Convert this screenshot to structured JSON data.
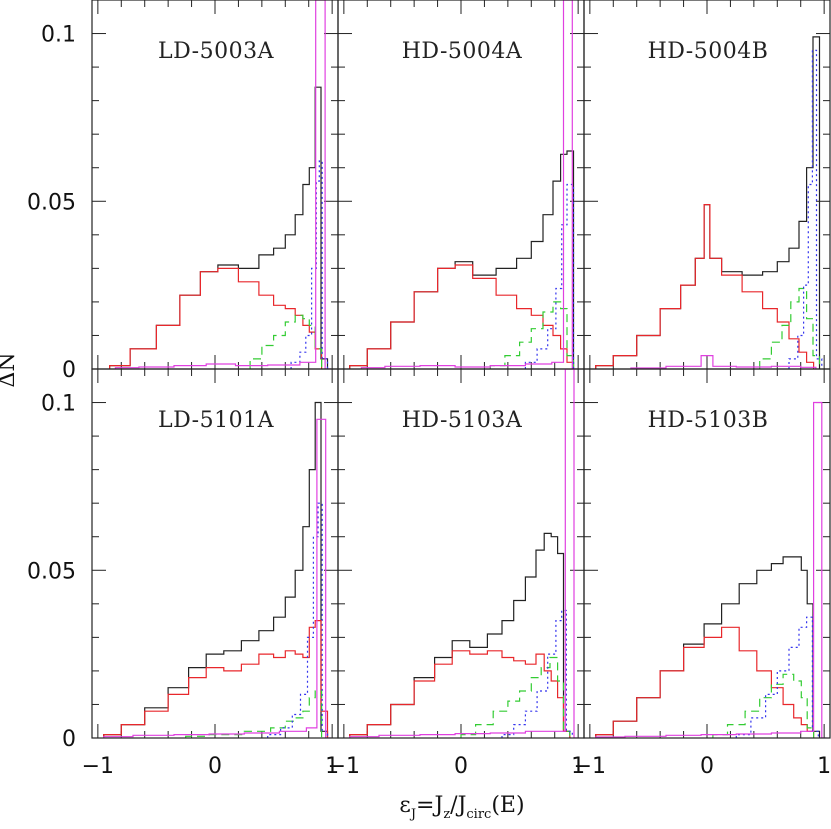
{
  "figure": {
    "ylabel": "ΔN",
    "xlabel": "ε_J=J_z/J_circ(E)",
    "xlabel_parts": {
      "eps": "ε",
      "eps_sub": "J",
      "eq": "=J",
      "jz_sub": "z",
      "slash": "/J",
      "circ_sub": "circ",
      "tail": "(E)"
    }
  },
  "axes": {
    "xlim": [
      -1.05,
      1.05
    ],
    "ylim": [
      0,
      0.11
    ],
    "x_ticks": [
      -1,
      0,
      1
    ],
    "x_tick_labels": [
      "−1",
      "0",
      "1"
    ],
    "y_ticks": [
      0,
      0.05,
      0.1
    ],
    "y_tick_labels": [
      "0",
      "0.05",
      "0.1"
    ]
  },
  "colors": {
    "total": "#222222",
    "red": "#e8272b",
    "green": "#33cc33",
    "blue": "#3333ee",
    "magenta": "#e040e0"
  },
  "chart_data": [
    {
      "type": "line",
      "title": "LD-5003A",
      "series": [
        {
          "style": "solid",
          "color": "#222222",
          "x": [
            -0.85,
            -0.6,
            -0.4,
            -0.2,
            -0.05,
            0.1,
            0.3,
            0.45,
            0.55,
            0.65,
            0.72,
            0.78,
            0.83,
            0.88,
            0.93
          ],
          "y": [
            0.001,
            0.006,
            0.013,
            0.022,
            0.029,
            0.031,
            0.03,
            0.034,
            0.036,
            0.04,
            0.046,
            0.055,
            0.06,
            0.084,
            0.003
          ]
        },
        {
          "style": "solid",
          "color": "#e8272b",
          "x": [
            -0.85,
            -0.6,
            -0.4,
            -0.2,
            -0.05,
            0.1,
            0.3,
            0.45,
            0.55,
            0.65,
            0.72,
            0.78,
            0.83,
            0.88
          ],
          "y": [
            0.001,
            0.006,
            0.013,
            0.022,
            0.029,
            0.03,
            0.026,
            0.022,
            0.019,
            0.018,
            0.016,
            0.013,
            0.011,
            0.006
          ]
        },
        {
          "style": "dashed",
          "color": "#33cc33",
          "x": [
            0.35,
            0.45,
            0.55,
            0.65,
            0.72,
            0.78,
            0.83,
            0.88
          ],
          "y": [
            0.003,
            0.007,
            0.01,
            0.014,
            0.016,
            0.015,
            0.013,
            0.006
          ]
        },
        {
          "style": "dotted",
          "color": "#3333ee",
          "x": [
            0.7,
            0.75,
            0.8,
            0.85,
            0.88,
            0.9,
            0.93
          ],
          "y": [
            0.002,
            0.005,
            0.01,
            0.03,
            0.056,
            0.062,
            0.003
          ]
        },
        {
          "style": "solid",
          "color": "#e040e0",
          "x": [
            -0.8,
            -0.5,
            -0.2,
            0.05,
            0.3,
            0.6,
            0.85,
            0.87,
            0.92,
            0.96
          ],
          "y": [
            0.0004,
            0.0006,
            0.001,
            0.0015,
            0.001,
            0.0012,
            0.002,
            0.11,
            0.11,
            0.0
          ]
        }
      ]
    },
    {
      "type": "line",
      "title": "HD-5004A",
      "series": [
        {
          "style": "solid",
          "color": "#222222",
          "x": [
            -0.9,
            -0.7,
            -0.5,
            -0.3,
            -0.1,
            0.0,
            0.2,
            0.4,
            0.55,
            0.65,
            0.75,
            0.82,
            0.88,
            0.93
          ],
          "y": [
            0.001,
            0.006,
            0.014,
            0.023,
            0.03,
            0.032,
            0.028,
            0.03,
            0.033,
            0.038,
            0.046,
            0.056,
            0.064,
            0.065
          ]
        },
        {
          "style": "solid",
          "color": "#e8272b",
          "x": [
            -0.9,
            -0.7,
            -0.5,
            -0.3,
            -0.1,
            0.0,
            0.2,
            0.4,
            0.55,
            0.65,
            0.75,
            0.82,
            0.88,
            0.93
          ],
          "y": [
            0.001,
            0.006,
            0.014,
            0.023,
            0.03,
            0.031,
            0.027,
            0.022,
            0.018,
            0.016,
            0.013,
            0.01,
            0.006,
            0.002
          ]
        },
        {
          "style": "dashed",
          "color": "#33cc33",
          "x": [
            0.3,
            0.45,
            0.55,
            0.65,
            0.75,
            0.82,
            0.88,
            0.93
          ],
          "y": [
            0.001,
            0.004,
            0.008,
            0.012,
            0.017,
            0.02,
            0.018,
            0.004
          ]
        },
        {
          "style": "dotted",
          "color": "#3333ee",
          "x": [
            0.6,
            0.7,
            0.78,
            0.84,
            0.88,
            0.93
          ],
          "y": [
            0.002,
            0.006,
            0.012,
            0.024,
            0.043,
            0.055
          ]
        },
        {
          "style": "solid",
          "color": "#e040e0",
          "x": [
            -0.8,
            -0.5,
            -0.2,
            0.1,
            0.4,
            0.7,
            0.85,
            0.9,
            0.93,
            0.97
          ],
          "y": [
            0.0004,
            0.0008,
            0.001,
            0.0006,
            0.001,
            0.0015,
            0.002,
            0.11,
            0.11,
            0.0
          ]
        }
      ]
    },
    {
      "type": "line",
      "title": "HD-5004B",
      "series": [
        {
          "style": "solid",
          "color": "#222222",
          "x": [
            -0.9,
            -0.7,
            -0.5,
            -0.3,
            -0.15,
            -0.05,
            0.0,
            0.05,
            0.2,
            0.4,
            0.55,
            0.65,
            0.75,
            0.82,
            0.88,
            0.93
          ],
          "y": [
            0.001,
            0.004,
            0.01,
            0.018,
            0.025,
            0.033,
            0.049,
            0.033,
            0.029,
            0.028,
            0.029,
            0.032,
            0.036,
            0.044,
            0.06,
            0.099
          ]
        },
        {
          "style": "solid",
          "color": "#e8272b",
          "x": [
            -0.9,
            -0.7,
            -0.5,
            -0.3,
            -0.15,
            -0.05,
            0.0,
            0.05,
            0.2,
            0.4,
            0.55,
            0.65,
            0.75,
            0.82,
            0.88
          ],
          "y": [
            0.001,
            0.004,
            0.01,
            0.018,
            0.025,
            0.033,
            0.049,
            0.033,
            0.028,
            0.023,
            0.018,
            0.014,
            0.009,
            0.005,
            0.002
          ]
        },
        {
          "style": "dashed",
          "color": "#33cc33",
          "x": [
            0.5,
            0.6,
            0.68,
            0.75,
            0.82,
            0.88,
            0.93
          ],
          "y": [
            0.003,
            0.008,
            0.013,
            0.02,
            0.024,
            0.015,
            0.004
          ]
        },
        {
          "style": "dotted",
          "color": "#3333ee",
          "x": [
            0.75,
            0.8,
            0.85,
            0.88,
            0.92,
            0.95
          ],
          "y": [
            0.003,
            0.01,
            0.025,
            0.055,
            0.095,
            0.003
          ]
        },
        {
          "style": "solid",
          "color": "#e040e0",
          "x": [
            -0.6,
            -0.1,
            0.0,
            0.1,
            0.4,
            0.7,
            0.9
          ],
          "y": [
            0.0003,
            0.0008,
            0.004,
            0.0008,
            0.0006,
            0.0008,
            0.0005
          ]
        }
      ]
    },
    {
      "type": "line",
      "title": "LD-5101A",
      "series": [
        {
          "style": "solid",
          "color": "#222222",
          "x": [
            -0.9,
            -0.7,
            -0.5,
            -0.3,
            -0.15,
            0.0,
            0.15,
            0.3,
            0.45,
            0.55,
            0.65,
            0.72,
            0.78,
            0.83,
            0.88,
            0.93
          ],
          "y": [
            0.001,
            0.004,
            0.009,
            0.015,
            0.021,
            0.025,
            0.026,
            0.029,
            0.032,
            0.036,
            0.042,
            0.05,
            0.063,
            0.08,
            0.1,
            0.002
          ]
        },
        {
          "style": "solid",
          "color": "#e8272b",
          "x": [
            -0.9,
            -0.7,
            -0.5,
            -0.3,
            -0.15,
            0.0,
            0.15,
            0.3,
            0.45,
            0.55,
            0.65,
            0.72,
            0.78,
            0.83,
            0.88,
            0.93
          ],
          "y": [
            0.001,
            0.004,
            0.008,
            0.013,
            0.018,
            0.021,
            0.02,
            0.022,
            0.025,
            0.024,
            0.026,
            0.025,
            0.024,
            0.033,
            0.035,
            0.008
          ]
        },
        {
          "style": "dashed",
          "color": "#33cc33",
          "x": [
            -0.2,
            0.1,
            0.4,
            0.55,
            0.65,
            0.72,
            0.78,
            0.83,
            0.88
          ],
          "y": [
            0.0005,
            0.001,
            0.002,
            0.003,
            0.005,
            0.006,
            0.008,
            0.012,
            0.014
          ]
        },
        {
          "style": "dotted",
          "color": "#3333ee",
          "x": [
            0.5,
            0.62,
            0.7,
            0.76,
            0.82,
            0.86,
            0.9,
            0.93
          ],
          "y": [
            0.001,
            0.003,
            0.007,
            0.013,
            0.03,
            0.06,
            0.07,
            0.002
          ]
        },
        {
          "style": "solid",
          "color": "#e040e0",
          "x": [
            -0.9,
            -0.5,
            -0.2,
            0.1,
            0.4,
            0.7,
            0.86,
            0.88,
            0.93,
            0.96
          ],
          "y": [
            0.0004,
            0.0008,
            0.001,
            0.0012,
            0.0015,
            0.002,
            0.003,
            0.095,
            0.095,
            0.0
          ]
        }
      ]
    },
    {
      "type": "line",
      "title": "HD-5103A",
      "series": [
        {
          "style": "solid",
          "color": "#222222",
          "x": [
            -0.9,
            -0.7,
            -0.5,
            -0.3,
            -0.15,
            0.0,
            0.15,
            0.3,
            0.4,
            0.5,
            0.6,
            0.68,
            0.74,
            0.8,
            0.85,
            0.9
          ],
          "y": [
            0.001,
            0.004,
            0.01,
            0.018,
            0.024,
            0.029,
            0.027,
            0.031,
            0.035,
            0.041,
            0.048,
            0.056,
            0.061,
            0.06,
            0.055,
            0.002
          ]
        },
        {
          "style": "solid",
          "color": "#e8272b",
          "x": [
            -0.9,
            -0.7,
            -0.5,
            -0.3,
            -0.15,
            0.0,
            0.15,
            0.3,
            0.4,
            0.5,
            0.6,
            0.68,
            0.74,
            0.8,
            0.85,
            0.9
          ],
          "y": [
            0.001,
            0.004,
            0.01,
            0.017,
            0.022,
            0.026,
            0.025,
            0.026,
            0.024,
            0.023,
            0.022,
            0.025,
            0.02,
            0.017,
            0.012,
            0.002
          ]
        },
        {
          "style": "dashed",
          "color": "#33cc33",
          "x": [
            0.05,
            0.2,
            0.35,
            0.45,
            0.55,
            0.65,
            0.72,
            0.8,
            0.85,
            0.9
          ],
          "y": [
            0.001,
            0.004,
            0.008,
            0.011,
            0.014,
            0.018,
            0.021,
            0.024,
            0.017,
            0.002
          ]
        },
        {
          "style": "dotted",
          "color": "#3333ee",
          "x": [
            0.4,
            0.5,
            0.6,
            0.7,
            0.78,
            0.84,
            0.88,
            0.92
          ],
          "y": [
            0.001,
            0.004,
            0.008,
            0.014,
            0.025,
            0.035,
            0.038,
            0.002
          ]
        },
        {
          "style": "solid",
          "color": "#e040e0",
          "x": [
            -0.9,
            -0.5,
            -0.2,
            0.1,
            0.4,
            0.7,
            0.88,
            0.9,
            0.95,
            0.98
          ],
          "y": [
            0.0004,
            0.0008,
            0.001,
            0.0013,
            0.0015,
            0.002,
            0.002,
            0.11,
            0.11,
            0.0
          ]
        }
      ]
    },
    {
      "type": "line",
      "title": "HD-5103B",
      "series": [
        {
          "style": "solid",
          "color": "#222222",
          "x": [
            -0.9,
            -0.7,
            -0.5,
            -0.3,
            -0.1,
            0.05,
            0.2,
            0.35,
            0.5,
            0.6,
            0.7,
            0.78,
            0.83,
            0.88,
            0.93
          ],
          "y": [
            0.001,
            0.005,
            0.012,
            0.02,
            0.028,
            0.034,
            0.04,
            0.046,
            0.05,
            0.052,
            0.054,
            0.054,
            0.05,
            0.04,
            0.002
          ]
        },
        {
          "style": "solid",
          "color": "#e8272b",
          "x": [
            -0.9,
            -0.7,
            -0.5,
            -0.3,
            -0.1,
            0.05,
            0.2,
            0.35,
            0.5,
            0.6,
            0.7,
            0.78,
            0.83,
            0.88
          ],
          "y": [
            0.001,
            0.005,
            0.012,
            0.02,
            0.027,
            0.03,
            0.033,
            0.026,
            0.02,
            0.015,
            0.01,
            0.006,
            0.004,
            0.002
          ]
        },
        {
          "style": "dashed",
          "color": "#33cc33",
          "x": [
            0.1,
            0.25,
            0.4,
            0.5,
            0.6,
            0.7,
            0.78,
            0.83,
            0.88
          ],
          "y": [
            0.001,
            0.004,
            0.008,
            0.012,
            0.016,
            0.019,
            0.017,
            0.012,
            0.003
          ]
        },
        {
          "style": "dotted",
          "color": "#3333ee",
          "x": [
            0.3,
            0.45,
            0.55,
            0.65,
            0.75,
            0.82,
            0.88,
            0.92
          ],
          "y": [
            0.001,
            0.006,
            0.013,
            0.02,
            0.027,
            0.033,
            0.036,
            0.002
          ]
        },
        {
          "style": "solid",
          "color": "#e040e0",
          "x": [
            -0.9,
            -0.5,
            -0.2,
            0.1,
            0.4,
            0.7,
            0.9,
            0.92,
            0.97,
            0.99
          ],
          "y": [
            0.0003,
            0.0005,
            0.0008,
            0.001,
            0.0012,
            0.0015,
            0.002,
            0.1,
            0.1,
            0.0
          ]
        }
      ]
    }
  ]
}
